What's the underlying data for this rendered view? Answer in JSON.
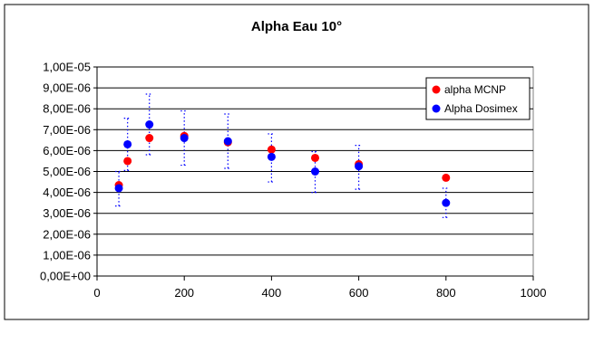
{
  "chart_data": {
    "type": "scatter",
    "title": "Alpha Eau 10°",
    "xlabel": "",
    "ylabel": "",
    "xlim": [
      0,
      1000
    ],
    "ylim": [
      0,
      1e-05
    ],
    "x_ticks": [
      "0",
      "200",
      "400",
      "600",
      "800",
      "1000"
    ],
    "y_ticks": [
      "0,00E+00",
      "1,00E-06",
      "2,00E-06",
      "3,00E-06",
      "4,00E-06",
      "5,00E-06",
      "6,00E-06",
      "7,00E-06",
      "8,00E-06",
      "9,00E-06",
      "1,00E-05"
    ],
    "grid": "horizontal",
    "legend_position": "right",
    "series": [
      {
        "name": "alpha MCNP",
        "color": "#ff0000",
        "x": [
          50,
          70,
          120,
          200,
          300,
          400,
          500,
          600,
          800
        ],
        "y": [
          4.35e-06,
          5.5e-06,
          6.6e-06,
          6.7e-06,
          6.4e-06,
          6.05e-06,
          5.65e-06,
          5.35e-06,
          4.7e-06
        ]
      },
      {
        "name": "Alpha Dosimex",
        "color": "#0000ff",
        "x": [
          50,
          70,
          120,
          200,
          300,
          400,
          500,
          600,
          800
        ],
        "y": [
          4.2e-06,
          6.3e-06,
          7.25e-06,
          6.6e-06,
          6.45e-06,
          5.7e-06,
          5e-06,
          5.25e-06,
          3.5e-06
        ],
        "error_low": [
          3.35e-06,
          5.05e-06,
          5.8e-06,
          5.3e-06,
          5.15e-06,
          4.5e-06,
          4e-06,
          4.15e-06,
          2.8e-06
        ],
        "error_high": [
          5e-06,
          7.55e-06,
          8.7e-06,
          7.9e-06,
          7.75e-06,
          6.8e-06,
          5.95e-06,
          6.25e-06,
          4.2e-06
        ]
      }
    ]
  }
}
